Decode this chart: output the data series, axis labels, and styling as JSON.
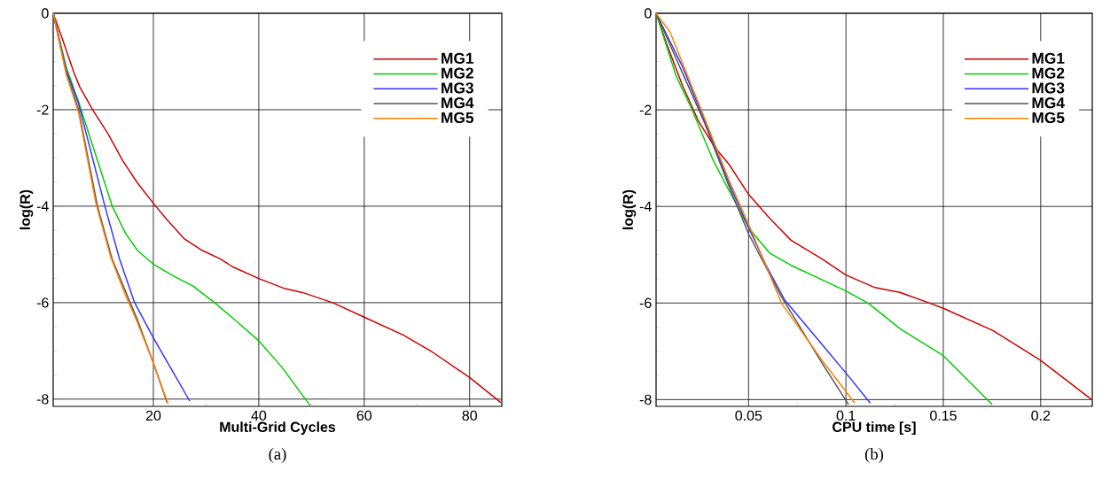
{
  "chart_data": [
    {
      "type": "line",
      "xlabel": "Multi-Grid Cycles",
      "ylabel": "log(R)",
      "xlim": [
        1,
        86.1
      ],
      "ylim": [
        -8.15,
        0
      ],
      "xticks": [
        20,
        40,
        60,
        80
      ],
      "yticks": [
        -8,
        -6,
        -4,
        -2,
        0
      ],
      "grid": true,
      "legend": "top right",
      "line_style": "solid",
      "annotations": [
        "(a)"
      ],
      "series": [
        {
          "name": "MG1",
          "color": "#cc0000",
          "x": [
            1,
            2.7,
            4.9,
            6.05,
            8.6,
            11.4,
            14.2,
            17,
            20,
            22.6,
            25.9,
            29.3,
            32.7,
            34.9,
            40,
            45,
            48.3,
            54,
            60,
            67.4,
            73,
            80,
            85.9
          ],
          "values": [
            0,
            -0.52,
            -1.22,
            -1.53,
            -2.02,
            -2.5,
            -3.06,
            -3.52,
            -3.94,
            -4.28,
            -4.68,
            -4.92,
            -5.09,
            -5.25,
            -5.5,
            -5.71,
            -5.79,
            -6.0,
            -6.3,
            -6.67,
            -7.03,
            -7.55,
            -8.07
          ]
        },
        {
          "name": "MG2",
          "color": "#00cc00",
          "x": [
            1,
            3.5,
            5.8,
            8.6,
            12.2,
            14.7,
            17,
            20,
            23.7,
            27.6,
            31.5,
            35.5,
            40,
            44.4,
            49.7
          ],
          "values": [
            0,
            -1.13,
            -1.83,
            -2.78,
            -4.0,
            -4.56,
            -4.92,
            -5.2,
            -5.44,
            -5.66,
            -5.99,
            -6.36,
            -6.79,
            -7.34,
            -8.13
          ]
        },
        {
          "name": "MG3",
          "color": "#3333ff",
          "x": [
            1,
            3.5,
            5.8,
            8.6,
            10.8,
            13.6,
            16.4,
            20,
            23.7,
            26.9
          ],
          "values": [
            0,
            -1.19,
            -1.87,
            -3.06,
            -4.0,
            -5.1,
            -5.99,
            -6.73,
            -7.43,
            -8.04
          ]
        },
        {
          "name": "MG4",
          "color": "#555555",
          "x": [
            1,
            3.5,
            5.8,
            9.4,
            12.2,
            15,
            17,
            20,
            22.6
          ],
          "values": [
            0,
            -1.25,
            -1.99,
            -4.0,
            -5.1,
            -5.84,
            -6.36,
            -7.25,
            -8.07
          ]
        },
        {
          "name": "MG5",
          "color": "#ff8000",
          "x": [
            1,
            3.5,
            5.8,
            9.1,
            11.9,
            14.7,
            17,
            20,
            22.8
          ],
          "values": [
            0,
            -1.28,
            -2.05,
            -3.94,
            -5.05,
            -5.84,
            -6.42,
            -7.25,
            -8.1
          ]
        }
      ]
    },
    {
      "type": "line",
      "xlabel": "CPU time [s]",
      "ylabel": "log(R)",
      "xlim": [
        0.0025,
        0.2265
      ],
      "ylim": [
        -8.14,
        0
      ],
      "xticks": [
        0.05,
        0.1,
        0.15,
        0.2
      ],
      "yticks": [
        -8,
        -6,
        -4,
        -2,
        0
      ],
      "grid": true,
      "legend": "top right",
      "line_style": "solid",
      "annotations": [
        "(b)"
      ],
      "series": [
        {
          "name": "MG1",
          "color": "#cc0000",
          "x": [
            0.0025,
            0.008,
            0.016,
            0.024,
            0.032,
            0.04,
            0.05,
            0.0607,
            0.0718,
            0.0878,
            0.1,
            0.1149,
            0.1277,
            0.1436,
            0.15,
            0.1755,
            0.2,
            0.2259
          ],
          "values": [
            0,
            -0.64,
            -1.49,
            -2.21,
            -2.74,
            -3.13,
            -3.75,
            -4.24,
            -4.7,
            -5.09,
            -5.42,
            -5.68,
            -5.78,
            -6.01,
            -6.11,
            -6.57,
            -7.19,
            -7.99
          ]
        },
        {
          "name": "MG2",
          "color": "#00cc00",
          "x": [
            0.0025,
            0.0128,
            0.0208,
            0.032,
            0.0431,
            0.05,
            0.0607,
            0.0718,
            0.0878,
            0.1,
            0.1117,
            0.1277,
            0.15,
            0.175
          ],
          "values": [
            0,
            -1.3,
            -1.98,
            -3.06,
            -3.91,
            -4.44,
            -4.96,
            -5.22,
            -5.52,
            -5.75,
            -6.01,
            -6.53,
            -7.09,
            -8.1
          ]
        },
        {
          "name": "MG3",
          "color": "#3333ff",
          "x": [
            0.0025,
            0.016,
            0.0272,
            0.04,
            0.05,
            0.059,
            0.0686,
            0.0878,
            0.1,
            0.1125
          ],
          "values": [
            0,
            -1.1,
            -2.21,
            -3.52,
            -4.44,
            -5.22,
            -5.94,
            -6.86,
            -7.45,
            -8.07
          ]
        },
        {
          "name": "MG4",
          "color": "#555555",
          "x": [
            0.0025,
            0.016,
            0.0272,
            0.04,
            0.05,
            0.067,
            0.0878,
            0.1013
          ],
          "values": [
            0,
            -1.23,
            -2.25,
            -3.59,
            -4.57,
            -5.88,
            -7.25,
            -8.1
          ]
        },
        {
          "name": "MG5",
          "color": "#ff8000",
          "x": [
            0.0025,
            0.0096,
            0.0272,
            0.04,
            0.05,
            0.067,
            0.0878,
            0.1045
          ],
          "values": [
            0,
            -0.38,
            -2.15,
            -3.46,
            -4.37,
            -6.01,
            -7.19,
            -8.07
          ]
        }
      ]
    }
  ]
}
